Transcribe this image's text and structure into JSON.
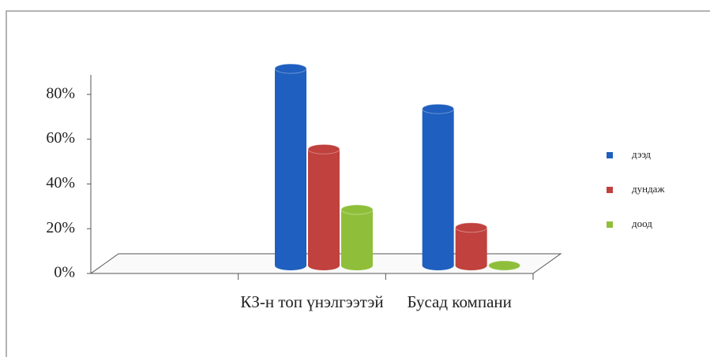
{
  "chart_data": {
    "type": "bar3d",
    "categories": [
      null,
      "КЗ-н топ үнэлгээтэй",
      "Бусад компани"
    ],
    "series": [
      {
        "name": "дээд",
        "color": "#1f5fbf",
        "values": [
          null,
          88,
          70
        ]
      },
      {
        "name": "дундаж",
        "color": "#c0413d",
        "values": [
          null,
          52,
          17
        ]
      },
      {
        "name": "доод",
        "color": "#8fbf3a",
        "values": [
          null,
          25,
          0
        ]
      }
    ],
    "ylim": [
      0,
      90
    ],
    "yticks": [
      {
        "value": 0,
        "label": "0%"
      },
      {
        "value": 20,
        "label": "20%"
      },
      {
        "value": 40,
        "label": "40%"
      },
      {
        "value": 60,
        "label": "60%"
      },
      {
        "value": 80,
        "label": "80%"
      }
    ],
    "legend": "right"
  }
}
